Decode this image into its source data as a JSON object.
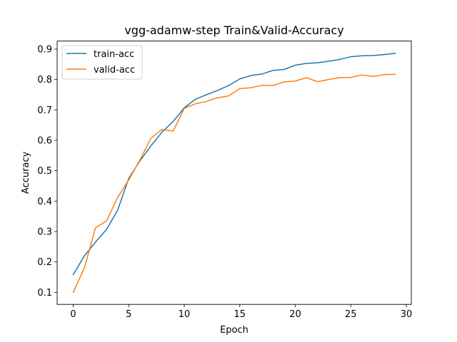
{
  "chart_data": {
    "type": "line",
    "title": "vgg-adamw-step Train&Valid-Accuracy",
    "xlabel": "Epoch",
    "ylabel": "Accuracy",
    "xlim": [
      -1.45,
      30.45
    ],
    "ylim": [
      0.0605,
      0.9265
    ],
    "xticks": [
      0,
      5,
      10,
      15,
      20,
      25,
      30
    ],
    "yticks": [
      0.1,
      0.2,
      0.3,
      0.4,
      0.5,
      0.6,
      0.7,
      0.8,
      0.9
    ],
    "ytick_labels": [
      "0.1",
      "0.2",
      "0.3",
      "0.4",
      "0.5",
      "0.6",
      "0.7",
      "0.8",
      "0.9"
    ],
    "grid": false,
    "legend_position": "upper-left",
    "x": [
      0,
      1,
      2,
      3,
      4,
      5,
      6,
      7,
      8,
      9,
      10,
      11,
      12,
      13,
      14,
      15,
      16,
      17,
      18,
      19,
      20,
      21,
      22,
      23,
      24,
      25,
      26,
      27,
      28,
      29
    ],
    "series": [
      {
        "name": "train-acc",
        "color": "#1f77b4",
        "values": [
          0.158,
          0.22,
          0.265,
          0.307,
          0.37,
          0.475,
          0.532,
          0.582,
          0.627,
          0.662,
          0.707,
          0.735,
          0.75,
          0.764,
          0.78,
          0.802,
          0.813,
          0.818,
          0.83,
          0.833,
          0.847,
          0.853,
          0.855,
          0.86,
          0.866,
          0.875,
          0.878,
          0.879,
          0.882,
          0.886
        ]
      },
      {
        "name": "valid-acc",
        "color": "#ff7f0e",
        "values": [
          0.1,
          0.18,
          0.312,
          0.335,
          0.412,
          0.47,
          0.535,
          0.607,
          0.636,
          0.63,
          0.705,
          0.72,
          0.728,
          0.74,
          0.746,
          0.77,
          0.773,
          0.781,
          0.781,
          0.792,
          0.795,
          0.806,
          0.793,
          0.8,
          0.806,
          0.807,
          0.815,
          0.81,
          0.816,
          0.817
        ]
      }
    ]
  }
}
